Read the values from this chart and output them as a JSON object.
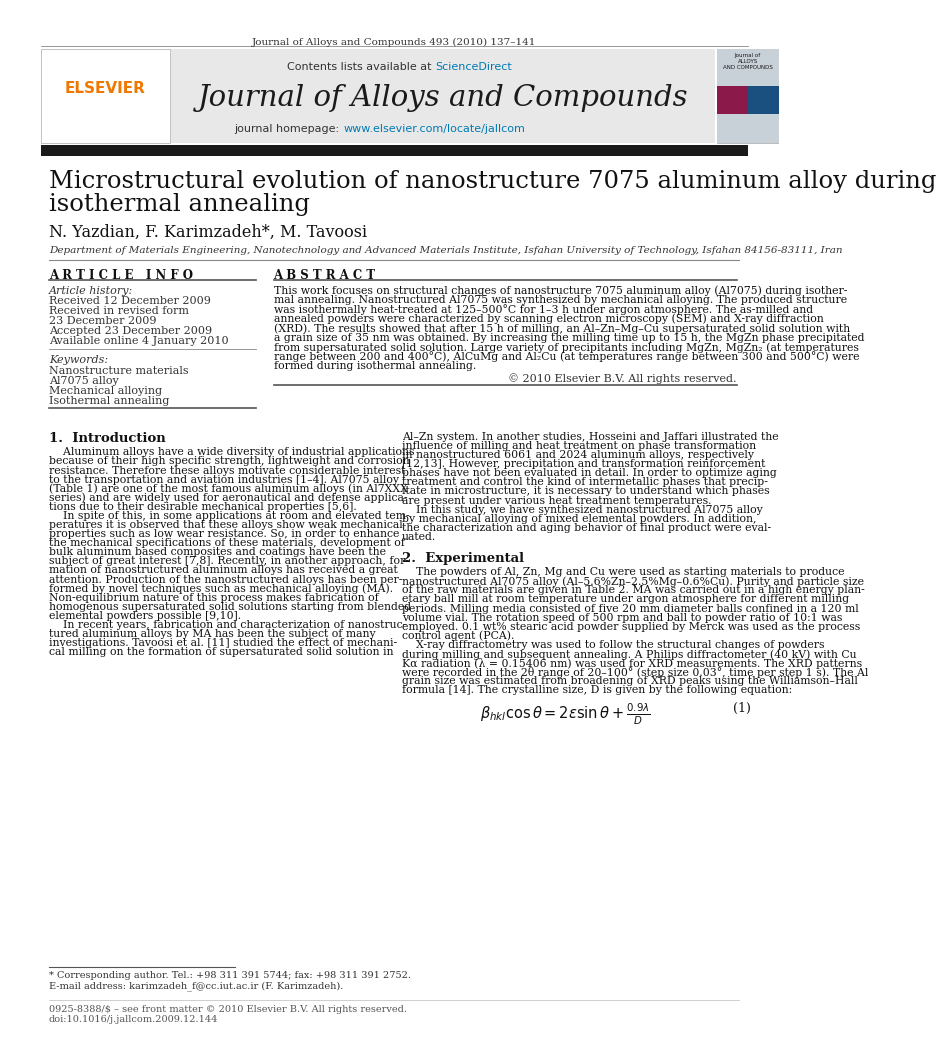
{
  "page_bg": "#ffffff",
  "header_journal_text": "Journal of Alloys and Compounds 493 (2010) 137–141",
  "header_bg": "#e8e8e8",
  "header_sciencedirect_text": "Contents lists available at ",
  "header_sciencedirect_link": "ScienceDirect",
  "header_journal_name": "Journal of Alloys and Compounds",
  "header_homepage_text": "journal homepage: ",
  "header_homepage_link": "www.elsevier.com/locate/jallcom",
  "dark_bar_color": "#1a1a1a",
  "elsevier_orange": "#f07800",
  "sciencedirect_blue": "#007ab3",
  "article_title_line1": "Microstructural evolution of nanostructure 7075 aluminum alloy during",
  "article_title_line2": "isothermal annealing",
  "authors": "N. Yazdian, F. Karimzadeh*, M. Tavoosi",
  "affiliation": "Department of Materials Engineering, Nanotechnology and Advanced Materials Institute, Isfahan University of Technology, Isfahan 84156-83111, Iran",
  "article_info_title": "A R T I C L E   I N F O",
  "abstract_title": "A B S T R A C T",
  "article_history_label": "Article history:",
  "received1": "Received 12 December 2009",
  "received2": "Received in revised form",
  "received2b": "23 December 2009",
  "accepted": "Accepted 23 December 2009",
  "available": "Available online 4 January 2010",
  "keywords_label": "Keywords:",
  "keyword1": "Nanostructure materials",
  "keyword2": "Al7075 alloy",
  "keyword3": "Mechanical alloying",
  "keyword4": "Isothermal annealing",
  "abstract_lines": [
    "This work focuses on structural changes of nanostructure 7075 aluminum alloy (Al7075) during isother-",
    "mal annealing. Nanostructured Al7075 was synthesized by mechanical alloying. The produced structure",
    "was isothermally heat-treated at 125–500°C for 1–3 h under argon atmosphere. The as-milled and",
    "annealed powders were characterized by scanning electron microscopy (SEM) and X-ray diffraction",
    "(XRD). The results showed that after 15 h of milling, an Al–Zn–Mg–Cu supersaturated solid solution with",
    "a grain size of 35 nm was obtained. By increasing the milling time up to 15 h, the MgZn phase precipitated",
    "from supersaturated solid solution. Large variety of precipitants including MgZn, MgZn₂ (at temperatures",
    "range between 200 and 400°C), AlCuMg and Al₂Cu (at temperatures range between 300 and 500°C) were",
    "formed during isothermal annealing."
  ],
  "copyright": "© 2010 Elsevier B.V. All rights reserved.",
  "section1_title": "1.  Introduction",
  "intro_left_lines": [
    "    Aluminum alloys have a wide diversity of industrial applications",
    "because of their high specific strength, lightweight and corrosion",
    "resistance. Therefore these alloys motivate considerable interest",
    "to the transportation and aviation industries [1–4]. Al7075 alloy",
    "(Table 1) are one of the most famous aluminum alloys (in Al7XXX",
    "series) and are widely used for aeronautical and defense applica-",
    "tions due to their desirable mechanical properties [5,6].",
    "    In spite of this, in some applications at room and elevated tem-",
    "peratures it is observed that these alloys show weak mechanical",
    "properties such as low wear resistance. So, in order to enhance",
    "the mechanical specifications of these materials, development of",
    "bulk aluminum based composites and coatings have been the",
    "subject of great interest [7,8]. Recently, in another approach, for-",
    "mation of nanostructured aluminum alloys has received a great",
    "attention. Production of the nanostructured alloys has been per-",
    "formed by novel techniques such as mechanical alloying (MA).",
    "Non-equilibrium nature of this process makes fabrication of",
    "homogenous supersaturated solid solutions starting from blended",
    "elemental powders possible [9,10].",
    "    In recent years, fabrication and characterization of nanostruc-",
    "tured aluminum alloys by MA has been the subject of many",
    "investigations. Tavoosi et al. [11] studied the effect of mechani-",
    "cal milling on the formation of supersaturated solid solution in"
  ],
  "intro_right_lines": [
    "Al–Zn system. In another studies, Hosseini and Jaffari illustrated the",
    "influence of milling and heat treatment on phase transformation",
    "in nanostructured 6061 and 2024 aluminum alloys, respectively",
    "[12,13]. However, precipitation and transformation reinforcement",
    "phases have not been evaluated in detail. In order to optimize aging",
    "treatment and control the kind of intermetallic phases that precip-",
    "itate in microstructure, it is necessary to understand which phases",
    "are present under various heat treatment temperatures.",
    "    In this study, we have synthesized nanostructured Al7075 alloy",
    "by mechanical alloying of mixed elemental powders. In addition,",
    "the characterization and aging behavior of final product were eval-",
    "uated."
  ],
  "section2_title": "2.  Experimental",
  "exp_lines": [
    "    The powders of Al, Zn, Mg and Cu were used as starting materials to produce",
    "nanostructured Al7075 alloy (Al–5.6%Zn–2.5%Mg–0.6%Cu). Purity and particle size",
    "of the raw materials are given in Table 2. MA was carried out in a high energy plan-",
    "etary ball mill at room temperature under argon atmosphere for different milling",
    "periods. Milling media consisted of five 20 mm diameter balls confined in a 120 ml",
    "volume vial. The rotation speed of 500 rpm and ball to powder ratio of 10:1 was",
    "employed. 0.1 wt% stearic acid powder supplied by Merck was used as the process",
    "control agent (PCA).",
    "    X-ray diffractometry was used to follow the structural changes of powders",
    "during milling and subsequent annealing. A Philips diffractometer (40 kV) with Cu",
    "Kα radiation (λ = 0.15406 nm) was used for XRD measurements. The XRD patterns",
    "were recorded in the 2θ range of 20–100° (step size 0.03°, time per step 1 s). The Al",
    "grain size was estimated from broadening of XRD peaks using the Williamson–Hall",
    "formula [14]. The crystalline size, D is given by the following equation:"
  ],
  "eq_number": "(1)",
  "footnote_star": "* Corresponding author. Tel.: +98 311 391 5744; fax: +98 311 391 2752.",
  "footnote_email": "E-mail address: karimzadeh_f@cc.iut.ac.ir (F. Karimzadeh).",
  "footer_text1": "0925-8388/$ – see front matter © 2010 Elsevier B.V. All rights reserved.",
  "footer_text2": "doi:10.1016/j.jallcom.2009.12.144"
}
